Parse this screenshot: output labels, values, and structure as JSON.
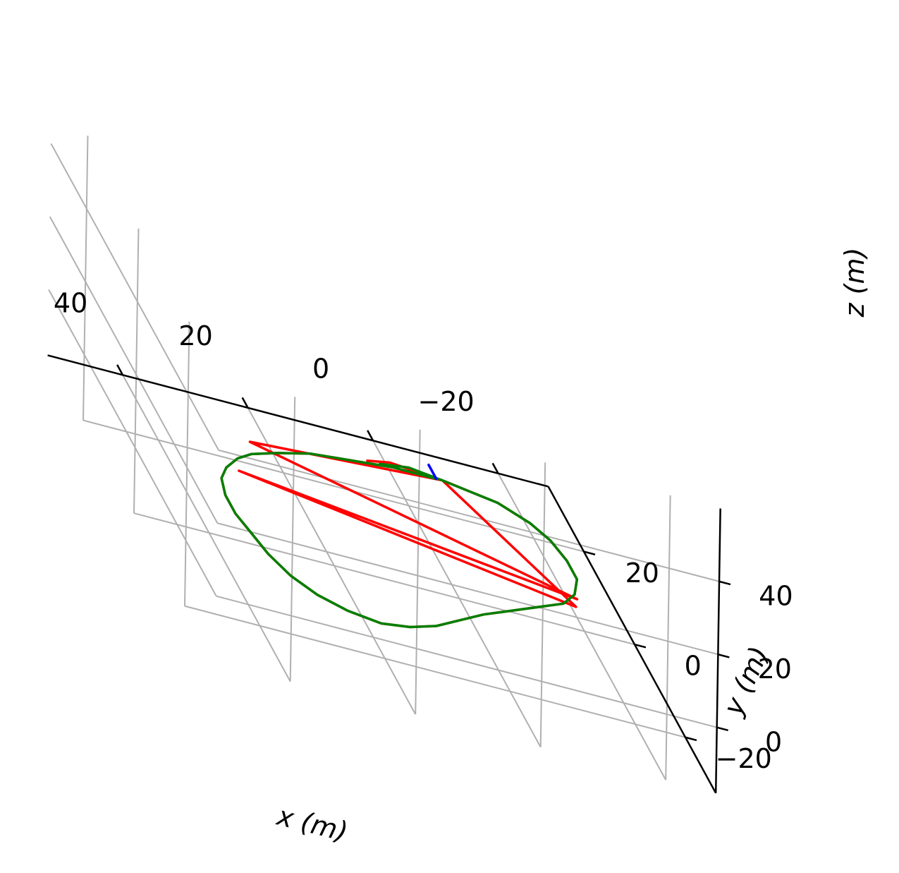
{
  "chart_data": {
    "type": "line3d",
    "title": "",
    "xlabel": "x (m)",
    "ylabel": "y (m)",
    "zlabel": "z (m)",
    "x_ticks": [
      40,
      20,
      0,
      -20
    ],
    "y_ticks": [
      -20,
      0,
      20
    ],
    "z_ticks": [
      0,
      20,
      40
    ],
    "grid": true,
    "series": [
      {
        "color": "#ff0000",
        "points": [
          [
            -1,
            12,
            0
          ],
          [
            6,
            12,
            0
          ],
          [
            13,
            11,
            0
          ],
          [
            20,
            10,
            0
          ],
          [
            26,
            8,
            0
          ],
          [
            31,
            6,
            0
          ],
          [
            34,
            4,
            0
          ],
          [
            37,
            1,
            0
          ],
          [
            39,
            -2,
            0
          ],
          [
            40,
            -6,
            0
          ],
          [
            40,
            -10,
            0
          ],
          [
            39,
            -14,
            0
          ],
          [
            38,
            -18,
            0
          ],
          [
            36,
            -22,
            0
          ],
          [
            33,
            -25,
            0
          ],
          [
            29,
            -27,
            0
          ],
          [
            24,
            -28,
            0
          ],
          [
            19,
            -27,
            0
          ],
          [
            14,
            -25,
            0
          ],
          [
            9,
            -22,
            0
          ],
          [
            4,
            -19,
            0
          ],
          [
            0,
            -17,
            0
          ],
          [
            -4,
            -15,
            0
          ],
          [
            -8,
            -13,
            0
          ],
          [
            -12,
            -11,
            0
          ],
          [
            -15,
            -8,
            0
          ],
          [
            -17,
            -4,
            0
          ],
          [
            -17,
            0,
            0
          ],
          [
            -16,
            4,
            0
          ],
          [
            -14,
            7,
            0
          ],
          [
            -10,
            10,
            0
          ],
          [
            -6,
            11,
            0
          ],
          [
            -2,
            12,
            0
          ],
          [
            -14,
            -11,
            0
          ],
          [
            35,
            1,
            0
          ],
          [
            -15,
            -9,
            0
          ],
          [
            30,
            9,
            0
          ],
          [
            -2,
            12,
            0
          ],
          [
            6,
            13,
            0
          ],
          [
            10,
            12,
            0
          ]
        ]
      },
      {
        "color": "#008000",
        "points": [
          [
            -1,
            12,
            0
          ],
          [
            6,
            12,
            0
          ],
          [
            13,
            11,
            0
          ],
          [
            20,
            10,
            0
          ],
          [
            26,
            8,
            0
          ],
          [
            31,
            6,
            0
          ],
          [
            34,
            4,
            0
          ],
          [
            37,
            1,
            0
          ],
          [
            39,
            -2,
            0
          ],
          [
            40,
            -6,
            0
          ],
          [
            40,
            -10,
            0
          ],
          [
            39,
            -14,
            0
          ],
          [
            38,
            -18,
            0
          ],
          [
            36,
            -22,
            0
          ],
          [
            33,
            -25,
            0
          ],
          [
            29,
            -27,
            0
          ],
          [
            24,
            -28,
            0
          ],
          [
            19,
            -27,
            0
          ],
          [
            14,
            -25,
            0
          ],
          [
            9,
            -22,
            0
          ],
          [
            4,
            -19,
            0
          ],
          [
            0,
            -17,
            0
          ],
          [
            -4,
            -15,
            0
          ],
          [
            -8,
            -13,
            0
          ],
          [
            -12,
            -11,
            0
          ],
          [
            -15,
            -8,
            0
          ],
          [
            -17,
            -4,
            0
          ],
          [
            -17,
            0,
            0
          ],
          [
            -16,
            4,
            0
          ],
          [
            -14,
            7,
            0
          ],
          [
            -10,
            10,
            0
          ],
          [
            -6,
            11,
            0
          ],
          [
            -2,
            12,
            0
          ],
          [
            3,
            13,
            0
          ],
          [
            8,
            12,
            0
          ]
        ]
      },
      {
        "color": "#0000ff",
        "points": [
          [
            -1,
            12,
            0
          ],
          [
            -1,
            15,
            0
          ]
        ]
      }
    ]
  }
}
